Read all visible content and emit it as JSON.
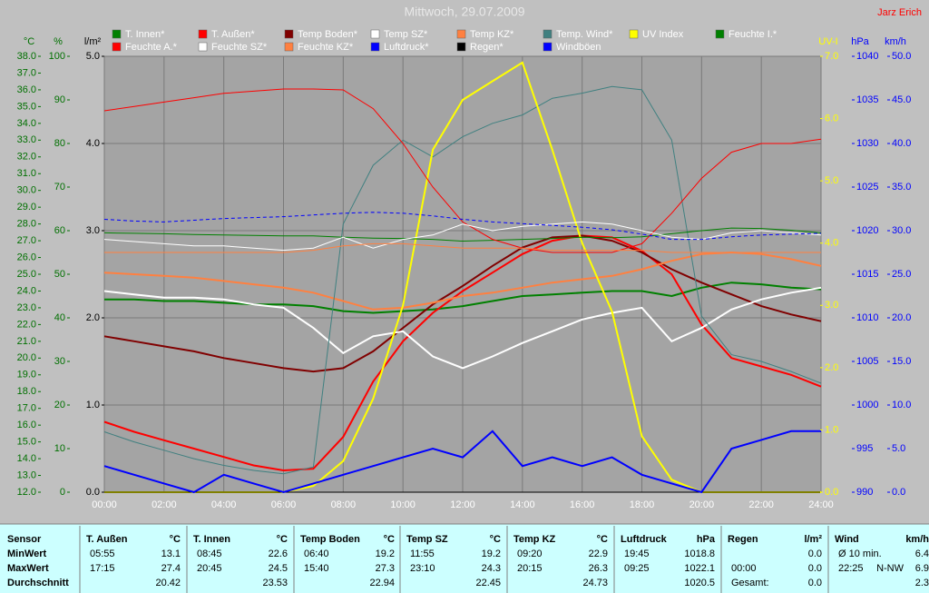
{
  "chart_data": {
    "type": "line",
    "title": "Mittwoch, 29.07.2009",
    "author": "Jarz Erich",
    "x": [
      0,
      1,
      2,
      3,
      4,
      5,
      6,
      7,
      8,
      9,
      10,
      11,
      12,
      13,
      14,
      15,
      16,
      17,
      18,
      19,
      20,
      21,
      22,
      23,
      24
    ],
    "xlim": [
      0,
      24
    ],
    "xticks": [
      {
        "value": 0,
        "label": "00:00"
      },
      {
        "value": 2,
        "label": "02:00"
      },
      {
        "value": 4,
        "label": "04:00"
      },
      {
        "value": 6,
        "label": "06:00"
      },
      {
        "value": 8,
        "label": "08:00"
      },
      {
        "value": 10,
        "label": "10:00"
      },
      {
        "value": 12,
        "label": "12:00"
      },
      {
        "value": 14,
        "label": "14:00"
      },
      {
        "value": 16,
        "label": "16:00"
      },
      {
        "value": 18,
        "label": "18:00"
      },
      {
        "value": 20,
        "label": "20:00"
      },
      {
        "value": 22,
        "label": "22:00"
      },
      {
        "value": 24,
        "label": "24:00"
      }
    ],
    "grid": true,
    "axes": [
      {
        "label": "°C",
        "side": "left",
        "color": "#007000",
        "lim": [
          12,
          38
        ],
        "ticks": [
          {
            "value": 12,
            "label": "12.0"
          },
          {
            "value": 13,
            "label": "13.0"
          },
          {
            "value": 14,
            "label": "14.0"
          },
          {
            "value": 15,
            "label": "15.0"
          },
          {
            "value": 16,
            "label": "16.0"
          },
          {
            "value": 17,
            "label": "17.0"
          },
          {
            "value": 18,
            "label": "18.0"
          },
          {
            "value": 19,
            "label": "19.0"
          },
          {
            "value": 20,
            "label": "20.0"
          },
          {
            "value": 21,
            "label": "21.0"
          },
          {
            "value": 22,
            "label": "22.0"
          },
          {
            "value": 23,
            "label": "23.0"
          },
          {
            "value": 24,
            "label": "24.0"
          },
          {
            "value": 25,
            "label": "25.0"
          },
          {
            "value": 26,
            "label": "26.0"
          },
          {
            "value": 27,
            "label": "27.0"
          },
          {
            "value": 28,
            "label": "28.0"
          },
          {
            "value": 29,
            "label": "29.0"
          },
          {
            "value": 30,
            "label": "30.0"
          },
          {
            "value": 31,
            "label": "31.0"
          },
          {
            "value": 32,
            "label": "32.0"
          },
          {
            "value": 33,
            "label": "33.0"
          },
          {
            "value": 34,
            "label": "34.0"
          },
          {
            "value": 35,
            "label": "35.0"
          },
          {
            "value": 36,
            "label": "36.0"
          },
          {
            "value": 37,
            "label": "37.0"
          },
          {
            "value": 38,
            "label": "38.0"
          }
        ]
      },
      {
        "label": "%",
        "side": "left",
        "color": "#007000",
        "lim": [
          0,
          100
        ],
        "ticks": [
          0,
          10,
          20,
          30,
          40,
          50,
          60,
          70,
          80,
          90,
          100
        ]
      },
      {
        "label": "l/m²",
        "side": "left",
        "color": "#000000",
        "lim": [
          0,
          5
        ],
        "grid": true,
        "ticks": [
          {
            "value": 0,
            "label": "0.0"
          },
          {
            "value": 1,
            "label": "1.0"
          },
          {
            "value": 2,
            "label": "2.0"
          },
          {
            "value": 3,
            "label": "3.0"
          },
          {
            "value": 4,
            "label": "4.0"
          },
          {
            "value": 5,
            "label": "5.0"
          }
        ]
      },
      {
        "label": "UV-I",
        "side": "right",
        "color": "#ffff00",
        "lim": [
          0,
          7
        ],
        "ticks": [
          {
            "value": 0,
            "label": "0.0"
          },
          {
            "value": 1,
            "label": "1.0"
          },
          {
            "value": 2,
            "label": "2.0"
          },
          {
            "value": 3,
            "label": "3.0"
          },
          {
            "value": 4,
            "label": "4.0"
          },
          {
            "value": 5,
            "label": "5.0"
          },
          {
            "value": 6,
            "label": "6.0"
          },
          {
            "value": 7,
            "label": "7.0"
          }
        ]
      },
      {
        "label": "hPa",
        "side": "right",
        "color": "#0000ff",
        "lim": [
          990,
          1040
        ],
        "ticks": [
          990,
          995,
          1000,
          1005,
          1010,
          1015,
          1020,
          1025,
          1030,
          1035,
          1040
        ]
      },
      {
        "label": "km/h",
        "side": "right",
        "color": "#0000ff",
        "lim": [
          0,
          50
        ],
        "ticks": [
          {
            "value": 0,
            "label": "0.0"
          },
          {
            "value": 5,
            "label": "5.0"
          },
          {
            "value": 10,
            "label": "10.0"
          },
          {
            "value": 15,
            "label": "15.0"
          },
          {
            "value": 20,
            "label": "20.0"
          },
          {
            "value": 25,
            "label": "25.0"
          },
          {
            "value": 30,
            "label": "30.0"
          },
          {
            "value": 35,
            "label": "35.0"
          },
          {
            "value": 40,
            "label": "40.0"
          },
          {
            "value": 45,
            "label": "45.0"
          },
          {
            "value": 50,
            "label": "50.0"
          }
        ]
      }
    ],
    "series": [
      {
        "name": "T. Innen*",
        "color": "#008000",
        "axis": "°C",
        "line_width": 2,
        "values": [
          23.5,
          23.5,
          23.4,
          23.4,
          23.3,
          23.2,
          23.2,
          23.1,
          22.8,
          22.7,
          22.8,
          22.9,
          23.1,
          23.4,
          23.7,
          23.8,
          23.9,
          24.0,
          24.0,
          23.7,
          24.2,
          24.5,
          24.4,
          24.2,
          24.1
        ]
      },
      {
        "name": "T. Außen*",
        "color": "#ff0000",
        "axis": "°C",
        "line_width": 2,
        "values": [
          16.2,
          15.6,
          15.1,
          14.6,
          14.1,
          13.6,
          13.3,
          13.4,
          15.3,
          18.6,
          21.0,
          22.7,
          24.0,
          25.1,
          26.2,
          27.0,
          27.3,
          27.2,
          26.4,
          25.0,
          22.0,
          20.0,
          19.5,
          19.0,
          18.3
        ]
      },
      {
        "name": "Temp Boden*",
        "color": "#800000",
        "axis": "°C",
        "line_width": 2,
        "values": [
          21.3,
          21.0,
          20.7,
          20.4,
          20.0,
          19.7,
          19.4,
          19.2,
          19.4,
          20.4,
          21.8,
          23.2,
          24.3,
          25.5,
          26.6,
          27.2,
          27.3,
          27.0,
          26.3,
          25.3,
          24.5,
          23.8,
          23.1,
          22.6,
          22.2
        ]
      },
      {
        "name": "Temp SZ*",
        "color": "#ffffff",
        "axis": "°C",
        "line_width": 2,
        "values": [
          24.0,
          23.8,
          23.6,
          23.6,
          23.5,
          23.2,
          23.0,
          21.8,
          20.3,
          21.3,
          21.6,
          20.1,
          19.4,
          20.1,
          20.9,
          21.6,
          22.3,
          22.7,
          23.0,
          21.0,
          21.8,
          22.9,
          23.5,
          23.9,
          24.2
        ]
      },
      {
        "name": "Temp KZ*",
        "color": "#ff8040",
        "axis": "°C",
        "line_width": 2,
        "values": [
          25.1,
          25.0,
          24.9,
          24.8,
          24.6,
          24.4,
          24.2,
          23.9,
          23.4,
          22.9,
          23.0,
          23.3,
          23.7,
          23.9,
          24.2,
          24.5,
          24.7,
          24.9,
          25.3,
          25.8,
          26.2,
          26.3,
          26.2,
          25.9,
          25.5
        ]
      },
      {
        "name": "Temp. Wind*",
        "color": "#408080",
        "axis": "°C",
        "line_width": 1,
        "values": [
          15.6,
          15.0,
          14.5,
          14.0,
          13.6,
          13.3,
          13.1,
          13.5,
          28.0,
          31.5,
          33.0,
          32.0,
          33.2,
          34.0,
          34.5,
          35.5,
          35.8,
          36.2,
          36.0,
          33.0,
          22.5,
          20.2,
          19.8,
          19.2,
          18.5
        ]
      },
      {
        "name": "UV Index",
        "color": "#ffff00",
        "axis": "UV-I",
        "line_width": 2,
        "values": [
          0,
          0,
          0,
          0,
          0,
          0,
          0,
          0.1,
          0.5,
          1.5,
          3.0,
          5.5,
          6.3,
          6.6,
          6.9,
          5.5,
          4.0,
          2.9,
          0.9,
          0.2,
          0,
          0,
          0,
          0,
          0
        ]
      },
      {
        "name": "Feuchte I.*",
        "color": "#008000",
        "axis": "%",
        "line_width": 1,
        "values": [
          59.5,
          59.4,
          59.3,
          59.1,
          59.0,
          58.9,
          58.8,
          58.8,
          58.5,
          58.3,
          58.2,
          58.0,
          57.6,
          57.8,
          58.0,
          58.2,
          58.5,
          58.4,
          58.6,
          59.3,
          60.0,
          60.6,
          60.5,
          60.1,
          59.5
        ]
      },
      {
        "name": "Feuchte A.*",
        "color": "#ff0000",
        "axis": "%",
        "line_width": 1,
        "values": [
          87.5,
          88.5,
          89.5,
          90.5,
          91.5,
          92.0,
          92.5,
          92.5,
          92.3,
          88,
          80,
          70,
          62,
          58,
          56,
          55,
          55,
          55,
          57,
          64,
          72,
          78,
          80,
          80,
          81
        ]
      },
      {
        "name": "Feuchte SZ*",
        "color": "#ffffff",
        "axis": "%",
        "line_width": 1,
        "values": [
          58,
          57.5,
          57,
          56.5,
          56.5,
          56,
          55.5,
          56,
          58.5,
          56,
          58,
          59,
          61.5,
          60,
          61,
          61.5,
          62,
          61.5,
          60,
          58.5,
          58,
          59.5,
          60,
          59.5,
          59
        ]
      },
      {
        "name": "Feuchte KZ*",
        "color": "#ff8040",
        "axis": "%",
        "line_width": 1,
        "values": [
          55,
          55,
          55,
          55,
          55,
          55,
          55,
          55.5,
          56.5,
          57,
          57,
          56.5,
          56,
          56,
          56,
          55.5,
          55.5,
          55.5,
          55.5,
          55,
          55,
          55,
          55,
          55,
          55
        ]
      },
      {
        "name": "Luftdruck*",
        "color": "#0000ff",
        "axis": "hPa",
        "line_width": 1,
        "dashed": true,
        "values": [
          1021.3,
          1021.1,
          1021.0,
          1021.2,
          1021.4,
          1021.5,
          1021.6,
          1021.8,
          1022.0,
          1022.1,
          1022.0,
          1021.7,
          1021.3,
          1021.0,
          1020.8,
          1020.6,
          1020.4,
          1020.1,
          1019.6,
          1019.0,
          1019.0,
          1019.3,
          1019.5,
          1019.6,
          1019.7
        ]
      },
      {
        "name": "Regen*",
        "color": "#000000",
        "axis": "l/m²",
        "line_width": 1,
        "values": [
          0,
          0,
          0,
          0,
          0,
          0,
          0,
          0,
          0,
          0,
          0,
          0,
          0,
          0,
          0,
          0,
          0,
          0,
          0,
          0,
          0,
          0,
          0,
          0,
          0
        ]
      },
      {
        "name": "Windböen",
        "color": "#0000ff",
        "axis": "km/h",
        "line_width": 2,
        "values": [
          3,
          2,
          1,
          0,
          2,
          1,
          0,
          1,
          2,
          3,
          4,
          5,
          4,
          7,
          3,
          4,
          3,
          4,
          2,
          1,
          0,
          5,
          6,
          7,
          7
        ]
      }
    ]
  },
  "stats": {
    "title": "Sensor",
    "rows": [
      "MinWert",
      "MaxWert",
      "Durchschnitt"
    ],
    "columns": [
      {
        "name": "T. Außen",
        "unit": "°C",
        "cells": [
          {
            "time": "05:55",
            "value": "13.1"
          },
          {
            "time": "17:15",
            "value": "27.4"
          },
          {
            "value": "20.42"
          }
        ]
      },
      {
        "name": "T. Innen",
        "unit": "°C",
        "cells": [
          {
            "time": "08:45",
            "value": "22.6"
          },
          {
            "time": "20:45",
            "value": "24.5"
          },
          {
            "value": "23.53"
          }
        ]
      },
      {
        "name": "Temp Boden",
        "unit": "°C",
        "cells": [
          {
            "time": "06:40",
            "value": "19.2"
          },
          {
            "time": "15:40",
            "value": "27.3"
          },
          {
            "value": "22.94"
          }
        ]
      },
      {
        "name": "Temp SZ",
        "unit": "°C",
        "cells": [
          {
            "time": "11:55",
            "value": "19.2"
          },
          {
            "time": "23:10",
            "value": "24.3"
          },
          {
            "value": "22.45"
          }
        ]
      },
      {
        "name": "Temp KZ",
        "unit": "°C",
        "cells": [
          {
            "time": "09:20",
            "value": "22.9"
          },
          {
            "time": "20:15",
            "value": "26.3"
          },
          {
            "value": "24.73"
          }
        ]
      },
      {
        "name": "Luftdruck",
        "unit": "hPa",
        "cells": [
          {
            "time": "19:45",
            "value": "1018.8"
          },
          {
            "time": "09:25",
            "value": "1022.1"
          },
          {
            "value": "1020.5"
          }
        ]
      },
      {
        "name": "Regen",
        "unit": "l/m²",
        "cells": [
          {
            "value": "0.0"
          },
          {
            "time": "00:00",
            "value": "0.0"
          },
          {
            "time": "Gesamt:",
            "value": "0.0"
          }
        ]
      },
      {
        "name": "Wind",
        "unit": "km/h",
        "cells": [
          {
            "time": "Ø 10 min.",
            "value": "6.4"
          },
          {
            "time": "22:25",
            "dir": "N-NW",
            "value": "6.9"
          },
          {
            "value": "2.3"
          }
        ]
      }
    ]
  }
}
